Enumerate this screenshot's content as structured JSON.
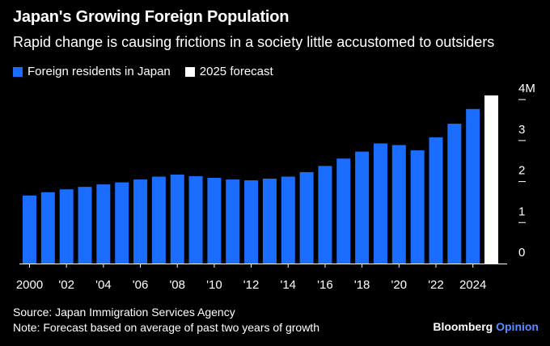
{
  "header": {
    "title": "Japan's Growing Foreign Population",
    "subtitle": "Rapid change is causing frictions in a society little accustomed to outsiders"
  },
  "legend": [
    {
      "label": "Foreign residents in Japan",
      "color": "#1a6dff"
    },
    {
      "label": "2025 forecast",
      "color": "#ffffff"
    }
  ],
  "footer": {
    "source": "Source: Japan Immigration Services Agency",
    "note": "Note: Forecast based on average of past two years of growth",
    "brand_main": "Bloomberg",
    "brand_accent": "Opinion"
  },
  "chart_data": {
    "type": "bar",
    "title": "Japan's Growing Foreign Population",
    "ylim": [
      0,
      4.2
    ],
    "yticks": [
      0,
      1,
      2,
      3,
      4
    ],
    "ytick_labels": [
      "0",
      "1",
      "2",
      "3",
      "4M"
    ],
    "xtick_labels": [
      "2000",
      "'02",
      "'04",
      "'06",
      "'08",
      "'10",
      "'12",
      "'14",
      "'16",
      "'18",
      "'20",
      "'22",
      "2024"
    ],
    "grid": false,
    "series": [
      {
        "name": "Foreign residents in Japan",
        "color": "#1a6dff",
        "x": [
          2000,
          2001,
          2002,
          2003,
          2004,
          2005,
          2006,
          2007,
          2008,
          2009,
          2010,
          2011,
          2012,
          2013,
          2014,
          2015,
          2016,
          2017,
          2018,
          2019,
          2020,
          2021,
          2022,
          2023,
          2024
        ],
        "values": [
          1.66,
          1.74,
          1.81,
          1.87,
          1.93,
          1.98,
          2.05,
          2.12,
          2.17,
          2.13,
          2.09,
          2.05,
          2.03,
          2.07,
          2.12,
          2.23,
          2.38,
          2.56,
          2.73,
          2.93,
          2.89,
          2.76,
          3.08,
          3.41,
          3.77
        ]
      },
      {
        "name": "2025 forecast",
        "color": "#ffffff",
        "x": [
          2025
        ],
        "values": [
          4.1
        ]
      }
    ]
  }
}
